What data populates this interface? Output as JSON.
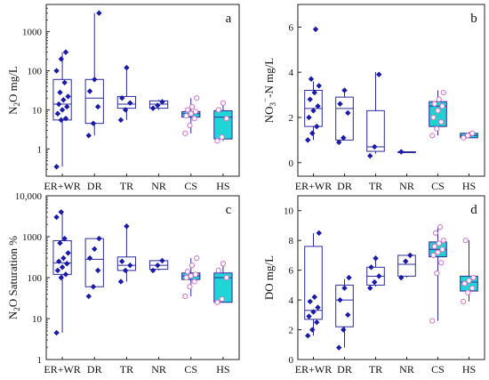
{
  "chart_data": [
    {
      "type": "box",
      "panel": "a",
      "ylabel": "N2O mg/L",
      "ylabel_parts": {
        "pre": "N",
        "sub": "2",
        "post": "O mg/L"
      },
      "yscale": "log",
      "ylim": [
        0.2,
        5000
      ],
      "yticks": [
        1,
        10,
        100,
        1000
      ],
      "ytick_labels": [
        "1",
        "10",
        "100",
        "1000"
      ],
      "categories": [
        "ER+WR",
        "DR",
        "TR",
        "NR",
        "CS",
        "HS"
      ],
      "boxes": [
        {
          "cat": "ER+WR",
          "min": 0.35,
          "q1": 5.5,
          "median": 14,
          "q3": 60,
          "max": 300,
          "points": [
            0.35,
            5.5,
            6,
            8,
            10,
            12,
            14,
            18,
            22,
            28,
            50,
            100,
            200,
            300
          ]
        },
        {
          "cat": "DR",
          "min": 2.2,
          "q1": 4.5,
          "median": 20,
          "q3": 60,
          "max": 3000,
          "points": [
            2.2,
            4.5,
            12,
            30,
            60,
            3000
          ]
        },
        {
          "cat": "TR",
          "min": 5.5,
          "q1": 11,
          "median": 14,
          "q3": 22,
          "max": 120,
          "points": [
            5.5,
            10,
            15,
            20,
            120
          ]
        },
        {
          "cat": "NR",
          "min": 10,
          "q1": 11,
          "median": 14,
          "q3": 17,
          "max": 18,
          "points": [
            11,
            13,
            16
          ]
        },
        {
          "cat": "CS",
          "min": 2.5,
          "q1": 6.5,
          "median": 8,
          "q3": 9,
          "max": 20,
          "points": [
            2.5,
            4,
            6,
            7,
            8,
            9,
            10,
            12,
            20
          ]
        },
        {
          "cat": "HS",
          "min": 1.6,
          "q1": 1.8,
          "median": 6.5,
          "q3": 9.5,
          "max": 15,
          "points": [
            1.6,
            2,
            6,
            10,
            15
          ]
        }
      ]
    },
    {
      "type": "box",
      "panel": "b",
      "ylabel": "NO3−-N mg/L",
      "ylabel_parts": {
        "pre": "NO",
        "sub": "3",
        "sup": "−",
        "post": "-N mg/L"
      },
      "yscale": "linear",
      "ylim": [
        -0.6,
        7
      ],
      "yticks": [
        0,
        2,
        4,
        6
      ],
      "ytick_labels": [
        "0",
        "2",
        "4",
        "6"
      ],
      "categories": [
        "ER+WR",
        "DR",
        "TR",
        "NR",
        "CS",
        "HS"
      ],
      "boxes": [
        {
          "cat": "ER+WR",
          "min": 1.0,
          "q1": 1.6,
          "median": 2.4,
          "q3": 3.2,
          "max": 3.6,
          "points": [
            1.0,
            1.3,
            1.6,
            2.0,
            2.3,
            2.5,
            2.8,
            3.1,
            3.4,
            3.7,
            5.9
          ]
        },
        {
          "cat": "DR",
          "min": 1.0,
          "q1": 1.0,
          "median": 2.4,
          "q3": 2.9,
          "max": 3.2,
          "points": [
            0.9,
            1.1,
            2.2,
            2.6,
            3.2
          ]
        },
        {
          "cat": "TR",
          "min": 0.4,
          "q1": 0.5,
          "median": 0.7,
          "q3": 2.3,
          "max": 4.0,
          "points": [
            0.3,
            0.7,
            3.9
          ]
        },
        {
          "cat": "NR",
          "min": 0.48,
          "q1": 0.48,
          "median": 0.48,
          "q3": 0.48,
          "max": 0.48,
          "points": [
            0.48
          ]
        },
        {
          "cat": "CS",
          "min": 1.2,
          "q1": 1.6,
          "median": 2.5,
          "q3": 2.7,
          "max": 3.2,
          "points": [
            1.2,
            1.5,
            1.8,
            2.0,
            2.3,
            2.5,
            2.6,
            2.8,
            3.1
          ]
        },
        {
          "cat": "HS",
          "min": 1.1,
          "q1": 1.1,
          "median": 1.2,
          "q3": 1.3,
          "max": 1.35,
          "points": [
            1.1,
            1.2,
            1.3
          ]
        }
      ]
    },
    {
      "type": "box",
      "panel": "c",
      "ylabel": "N2O Saturation %",
      "ylabel_parts": {
        "pre": "N",
        "sub": "2",
        "post": "O  Saturation %"
      },
      "yscale": "log",
      "ylim": [
        1,
        10000
      ],
      "yticks": [
        1,
        10,
        100,
        1000,
        10000
      ],
      "ytick_labels": [
        "1",
        "10",
        "100",
        "1000",
        "10,000"
      ],
      "categories": [
        "ER+WR",
        "DR",
        "TR",
        "NR",
        "CS",
        "HS"
      ],
      "boxes": [
        {
          "cat": "ER+WR",
          "min": 4.5,
          "q1": 120,
          "median": 230,
          "q3": 800,
          "max": 4000,
          "points": [
            4.5,
            100,
            120,
            150,
            180,
            220,
            250,
            300,
            400,
            700,
            900,
            3000,
            4000
          ]
        },
        {
          "cat": "DR",
          "min": 60,
          "q1": 60,
          "median": 280,
          "q3": 900,
          "max": 900,
          "points": [
            35,
            60,
            150,
            300,
            500,
            900
          ]
        },
        {
          "cat": "TR",
          "min": 80,
          "q1": 150,
          "median": 200,
          "q3": 320,
          "max": 1800,
          "points": [
            80,
            150,
            200,
            250,
            1800
          ]
        },
        {
          "cat": "NR",
          "min": 150,
          "q1": 160,
          "median": 200,
          "q3": 260,
          "max": 270,
          "points": [
            150,
            200,
            260
          ]
        },
        {
          "cat": "CS",
          "min": 35,
          "q1": 90,
          "median": 110,
          "q3": 130,
          "max": 300,
          "points": [
            35,
            60,
            80,
            100,
            110,
            120,
            140,
            200,
            300
          ]
        },
        {
          "cat": "HS",
          "min": 25,
          "q1": 25,
          "median": 100,
          "q3": 130,
          "max": 230,
          "points": [
            25,
            30,
            100,
            150,
            220
          ]
        }
      ]
    },
    {
      "type": "box",
      "panel": "d",
      "ylabel": "DO mg/L",
      "yscale": "linear",
      "ylim": [
        0,
        11
      ],
      "yticks": [
        0,
        2,
        4,
        6,
        8,
        10
      ],
      "ytick_labels": [
        "0",
        "2",
        "4",
        "6",
        "8",
        "10"
      ],
      "categories": [
        "ER+WR",
        "DR",
        "TR",
        "NR",
        "CS",
        "HS"
      ],
      "boxes": [
        {
          "cat": "ER+WR",
          "min": 1.6,
          "q1": 2.7,
          "median": 3.3,
          "q3": 7.6,
          "max": 8.5,
          "points": [
            1.6,
            2.0,
            2.5,
            2.9,
            3.2,
            3.5,
            3.9,
            4.2,
            8.5
          ]
        },
        {
          "cat": "DR",
          "min": 0.8,
          "q1": 2.2,
          "median": 4.0,
          "q3": 5.0,
          "max": 5.4,
          "points": [
            0.8,
            2.0,
            3.0,
            4.0,
            4.8,
            5.5
          ]
        },
        {
          "cat": "TR",
          "min": 4.9,
          "q1": 5.0,
          "median": 5.6,
          "q3": 6.2,
          "max": 6.7,
          "points": [
            4.8,
            5.2,
            5.6,
            6.2,
            6.8
          ]
        },
        {
          "cat": "NR",
          "min": 5.5,
          "q1": 5.6,
          "median": 6.4,
          "q3": 7.0,
          "max": 7.0,
          "points": [
            5.5,
            6.6,
            7.0
          ]
        },
        {
          "cat": "CS",
          "min": 2.6,
          "q1": 6.9,
          "median": 7.4,
          "q3": 7.9,
          "max": 8.9,
          "points": [
            2.6,
            5.8,
            6.5,
            7.0,
            7.2,
            7.4,
            7.6,
            7.8,
            8.0,
            8.5,
            8.9
          ]
        },
        {
          "cat": "HS",
          "min": 3.9,
          "q1": 4.6,
          "median": 5.2,
          "q3": 5.6,
          "max": 8.0,
          "points": [
            3.9,
            4.5,
            4.8,
            5.1,
            5.3,
            5.5,
            8.0
          ]
        }
      ]
    }
  ],
  "colors": {
    "box_stroke": "#2b2b9e",
    "river_marker": "#1a1aa8",
    "cs_box_fill": "#1fd1cf",
    "hs_box_fill": "#20d5d5",
    "cs_marker": "#d870c8",
    "axis": "#222222"
  },
  "filled_categories": [
    "CS",
    "HS"
  ]
}
